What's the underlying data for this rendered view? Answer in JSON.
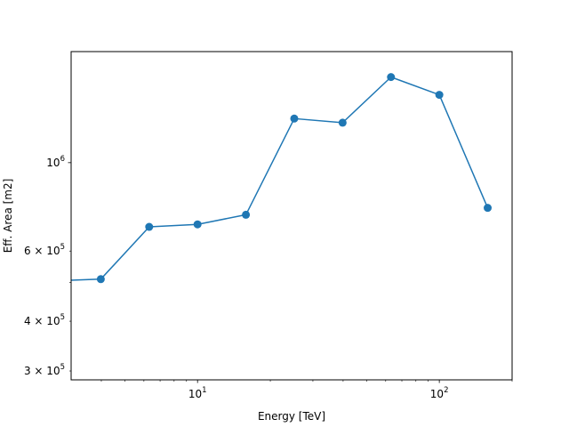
{
  "chart_data": {
    "type": "line",
    "title": "",
    "xlabel": "Energy [TeV]",
    "ylabel": "Eff. Area [m2]",
    "xscale": "log",
    "yscale": "log",
    "xlim": [
      3.0,
      200
    ],
    "ylim": [
      285000,
      1900000
    ],
    "grid": false,
    "color": "#1f77b4",
    "x_major_ticks": [
      {
        "value": 10,
        "base": "10",
        "exp": "1"
      },
      {
        "value": 100,
        "base": "10",
        "exp": "2"
      }
    ],
    "x_minor_ticks": [
      4,
      5,
      6,
      7,
      8,
      9,
      20,
      30,
      40,
      50,
      60,
      70,
      80,
      90,
      200
    ],
    "y_major_ticks": [
      {
        "value": 1000000,
        "base": "10",
        "exp": "6"
      }
    ],
    "y_minor_ticks": [
      {
        "value": 300000,
        "mant": "3",
        "base": "10",
        "exp": "5"
      },
      {
        "value": 400000,
        "mant": "4",
        "base": "10",
        "exp": "5"
      },
      {
        "value": 500000,
        "mant": "",
        "base": "",
        "exp": ""
      },
      {
        "value": 600000,
        "mant": "6",
        "base": "10",
        "exp": "5"
      }
    ],
    "series": [
      {
        "x": [
          2.5,
          3.98,
          6.31,
          10.0,
          15.85,
          25.12,
          39.81,
          63.1,
          100.0,
          158.5
        ],
        "y": [
          505000,
          510000,
          690000,
          700000,
          740000,
          1290000,
          1260000,
          1640000,
          1480000,
          770000
        ]
      }
    ]
  }
}
